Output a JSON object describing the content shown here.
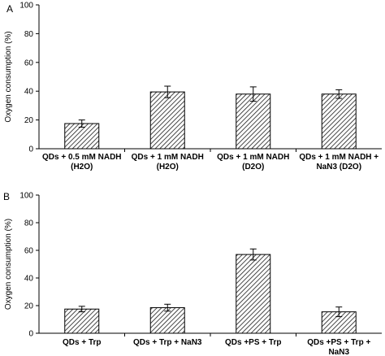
{
  "chart_data": [
    {
      "type": "bar",
      "panel_label": "A",
      "ylabel": "Oxygen consumption (%)",
      "ylim": [
        0,
        100
      ],
      "yticks": [
        0,
        20,
        40,
        60,
        80,
        100
      ],
      "categories": [
        [
          "QDs + 0.5 mM NADH",
          "(H2O)"
        ],
        [
          "QDs + 1 mM NADH",
          "(H2O)"
        ],
        [
          "QDs + 1 mM NADH",
          "(D2O)"
        ],
        [
          "QDs + 1 mM NADH +",
          "NaN3 (D2O)"
        ]
      ],
      "values": [
        17.5,
        39.5,
        38,
        38
      ],
      "errors": [
        2.5,
        4,
        5,
        3
      ],
      "bar_fill": "hatched",
      "grid": false
    },
    {
      "type": "bar",
      "panel_label": "B",
      "ylabel": "Oxygen consumption (%)",
      "ylim": [
        0,
        100
      ],
      "yticks": [
        0,
        20,
        40,
        60,
        80,
        100
      ],
      "categories": [
        [
          "QDs + Trp"
        ],
        [
          "QDs + Trp + NaN3"
        ],
        [
          "QDs +PS + Trp"
        ],
        [
          "QDs +PS + Trp +",
          "NaN3"
        ]
      ],
      "values": [
        17.5,
        18.5,
        57,
        15.5
      ],
      "errors": [
        2,
        2.5,
        4,
        3.5
      ],
      "bar_fill": "hatched",
      "grid": false
    }
  ]
}
